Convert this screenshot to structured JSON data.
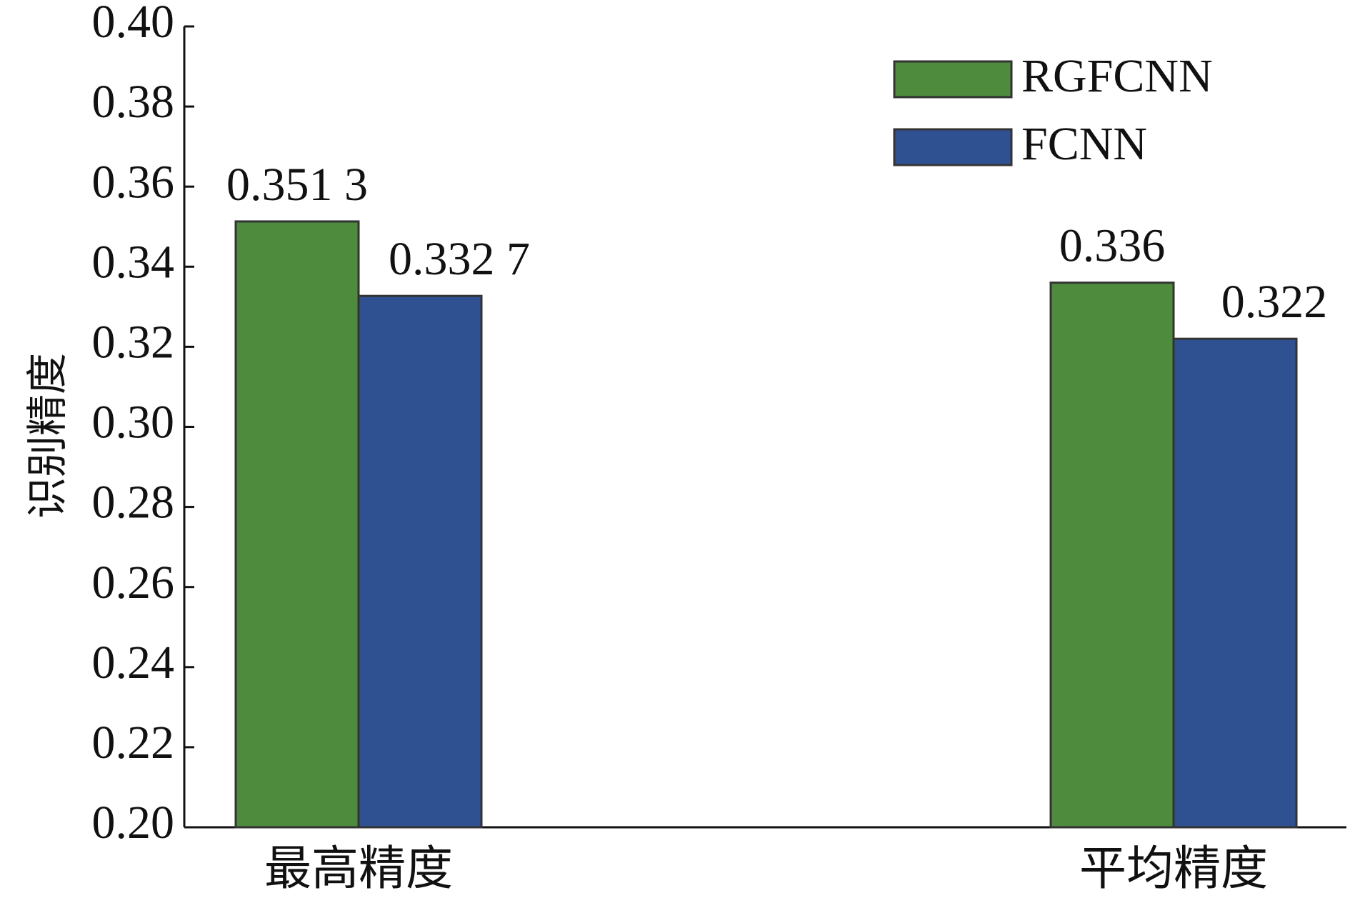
{
  "chart_data": {
    "type": "bar",
    "categories": [
      "最高精度",
      "平均精度"
    ],
    "series": [
      {
        "name": "RGFCNN",
        "values": [
          0.3513,
          0.336
        ],
        "labels": [
          "0.351 3",
          "0.336"
        ],
        "color": "#4e8b3c"
      },
      {
        "name": "FCNN",
        "values": [
          0.3327,
          0.322
        ],
        "labels": [
          "0.332 7",
          "0.322"
        ],
        "color": "#2f5091"
      }
    ],
    "title": "",
    "xlabel": "",
    "ylabel": "识别精度",
    "ylim": [
      0.2,
      0.4
    ],
    "yticks": [
      "0.20",
      "0.22",
      "0.24",
      "0.26",
      "0.28",
      "0.30",
      "0.32",
      "0.34",
      "0.36",
      "0.38",
      "0.40"
    ],
    "grid": false,
    "legend_position": "top-right"
  }
}
